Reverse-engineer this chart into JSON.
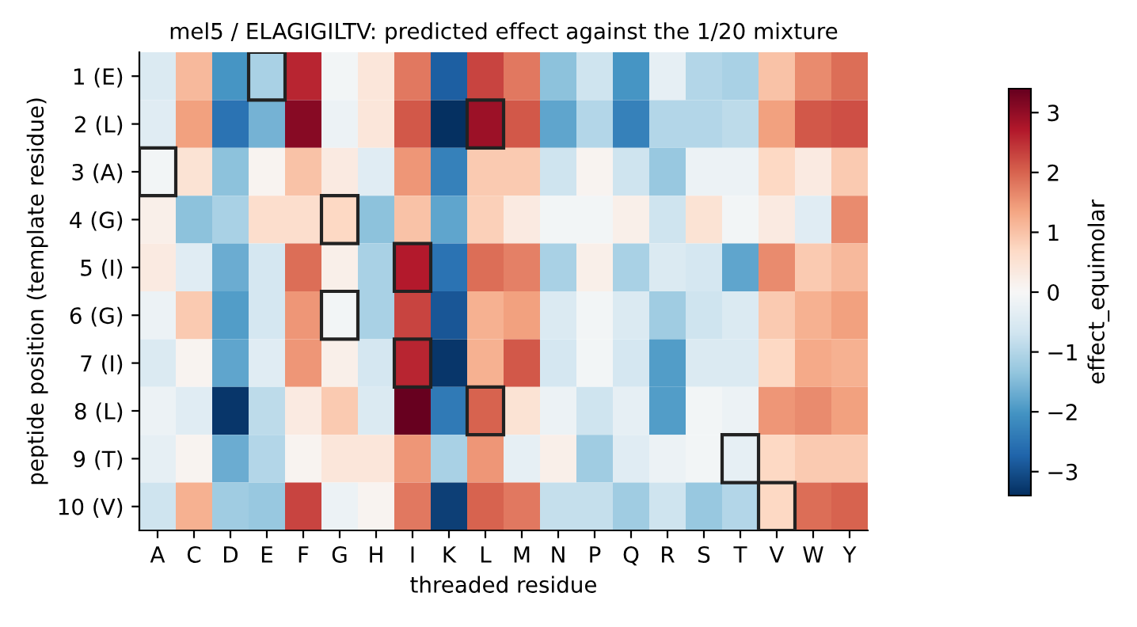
{
  "chart_data": {
    "type": "heatmap",
    "title": "mel5 / ELAGIGILTV: predicted effect against the 1/20 mixture",
    "xlabel": "threaded residue",
    "ylabel": "peptide position (template residue)",
    "clabel": "effect_equimolar",
    "categories": [
      "A",
      "C",
      "D",
      "E",
      "F",
      "G",
      "H",
      "I",
      "K",
      "L",
      "M",
      "N",
      "P",
      "Q",
      "R",
      "S",
      "T",
      "V",
      "W",
      "Y"
    ],
    "y_categories": [
      "1 (E)",
      "2 (L)",
      "3 (A)",
      "4 (G)",
      "5 (I)",
      "6 (G)",
      "7 (I)",
      "8 (L)",
      "9 (T)",
      "10 (V)"
    ],
    "cells": [
      [
        -0.5,
        1.1,
        -2.0,
        -1.1,
        2.6,
        -0.1,
        0.4,
        1.8,
        -2.8,
        2.3,
        1.8,
        -1.4,
        -0.7,
        -2.0,
        -0.3,
        -1.0,
        -1.1,
        1.0,
        1.6,
        1.9
      ],
      [
        -0.4,
        1.4,
        -2.5,
        -1.6,
        3.1,
        -0.2,
        0.4,
        2.1,
        -3.4,
        2.9,
        2.1,
        -1.8,
        -1.0,
        -2.3,
        -1.0,
        -1.0,
        -0.9,
        1.4,
        2.1,
        2.2
      ],
      [
        -0.1,
        0.5,
        -1.4,
        0.1,
        1.0,
        0.3,
        -0.4,
        1.5,
        -2.3,
        0.9,
        0.9,
        -0.7,
        0.1,
        -0.7,
        -1.3,
        -0.2,
        -0.2,
        0.7,
        0.3,
        0.9
      ],
      [
        0.2,
        -1.4,
        -1.1,
        0.6,
        0.6,
        0.7,
        -1.4,
        1.0,
        -1.8,
        0.8,
        0.3,
        -0.1,
        -0.1,
        0.2,
        -0.7,
        0.5,
        -0.1,
        0.3,
        -0.4,
        1.6
      ],
      [
        0.3,
        -0.4,
        -1.7,
        -0.6,
        1.9,
        0.2,
        -1.1,
        2.7,
        -2.5,
        1.9,
        1.7,
        -1.1,
        0.2,
        -1.1,
        -0.5,
        -0.6,
        -1.8,
        1.6,
        0.9,
        1.1
      ],
      [
        -0.2,
        0.9,
        -1.9,
        -0.6,
        1.5,
        -0.1,
        -1.1,
        2.3,
        -2.9,
        1.2,
        1.4,
        -0.5,
        -0.1,
        -0.5,
        -1.2,
        -0.7,
        -0.5,
        0.9,
        1.2,
        1.4
      ],
      [
        -0.5,
        0.1,
        -1.8,
        -0.4,
        1.5,
        0.2,
        -0.6,
        2.6,
        -3.3,
        1.2,
        2.1,
        -0.6,
        -0.1,
        -0.6,
        -1.9,
        -0.5,
        -0.5,
        0.7,
        1.3,
        1.2
      ],
      [
        -0.2,
        -0.4,
        -3.3,
        -0.9,
        0.3,
        0.9,
        -0.5,
        3.4,
        -2.4,
        2.0,
        0.5,
        -0.2,
        -0.7,
        -0.3,
        -1.9,
        -0.1,
        -0.2,
        1.5,
        1.6,
        1.4
      ],
      [
        -0.3,
        0.1,
        -1.7,
        -1.0,
        0.1,
        0.4,
        0.4,
        1.5,
        -1.1,
        1.5,
        -0.3,
        0.2,
        -1.2,
        -0.4,
        -0.2,
        -0.1,
        -0.3,
        0.7,
        0.9,
        0.9
      ],
      [
        -0.7,
        1.2,
        -1.2,
        -1.3,
        2.3,
        -0.2,
        0.1,
        1.8,
        -3.2,
        2.0,
        1.8,
        -0.8,
        -0.8,
        -1.2,
        -0.7,
        -1.3,
        -1.0,
        0.7,
        1.9,
        2.0
      ]
    ],
    "clim": [
      -3.4,
      3.4
    ],
    "cticks": [
      -3,
      -2,
      -1,
      0,
      1,
      2,
      3
    ]
  }
}
